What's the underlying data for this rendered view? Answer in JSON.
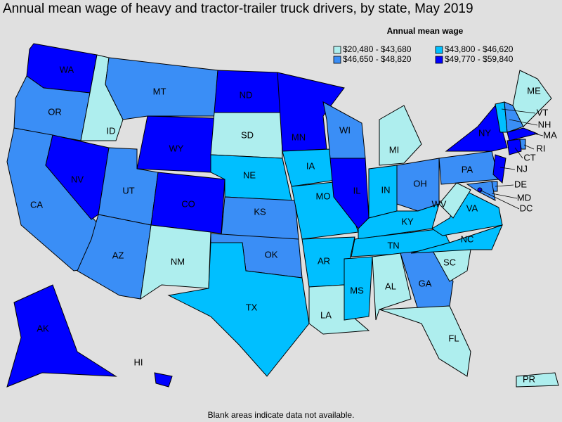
{
  "title": "Annual mean wage of heavy and tractor-trailer truck drivers, by state, May 2019",
  "legend": {
    "title": "Annual mean wage",
    "entries": [
      {
        "label": "$20,480 - $43,680",
        "color": "#aeeeee"
      },
      {
        "label": "$43,800 - $46,620",
        "color": "#00bfff"
      },
      {
        "label": "$46,650 - $48,820",
        "color": "#3a8ef6"
      },
      {
        "label": "$49,770 - $59,840",
        "color": "#0000ff"
      }
    ]
  },
  "states": [
    {
      "label": "WA",
      "class": 3
    },
    {
      "label": "OR",
      "class": 2
    },
    {
      "label": "CA",
      "class": 2
    },
    {
      "label": "NV",
      "class": 3
    },
    {
      "label": "ID",
      "class": 0
    },
    {
      "label": "MT",
      "class": 2
    },
    {
      "label": "WY",
      "class": 3
    },
    {
      "label": "UT",
      "class": 2
    },
    {
      "label": "CO",
      "class": 3
    },
    {
      "label": "AZ",
      "class": 2
    },
    {
      "label": "NM",
      "class": 0
    },
    {
      "label": "ND",
      "class": 3
    },
    {
      "label": "SD",
      "class": 0
    },
    {
      "label": "NE",
      "class": 1
    },
    {
      "label": "KS",
      "class": 2
    },
    {
      "label": "OK",
      "class": 2
    },
    {
      "label": "TX",
      "class": 1
    },
    {
      "label": "MN",
      "class": 3
    },
    {
      "label": "IA",
      "class": 1
    },
    {
      "label": "MO",
      "class": 1
    },
    {
      "label": "AR",
      "class": 1
    },
    {
      "label": "LA",
      "class": 0
    },
    {
      "label": "WI",
      "class": 2
    },
    {
      "label": "IL",
      "class": 3
    },
    {
      "label": "MI",
      "class": 0
    },
    {
      "label": "IN",
      "class": 1
    },
    {
      "label": "OH",
      "class": 2
    },
    {
      "label": "KY",
      "class": 1
    },
    {
      "label": "TN",
      "class": 1
    },
    {
      "label": "MS",
      "class": 1
    },
    {
      "label": "AL",
      "class": 0
    },
    {
      "label": "GA",
      "class": 2
    },
    {
      "label": "FL",
      "class": 0
    },
    {
      "label": "SC",
      "class": 0
    },
    {
      "label": "NC",
      "class": 1
    },
    {
      "label": "VA",
      "class": 1
    },
    {
      "label": "WV",
      "class": 0
    },
    {
      "label": "PA",
      "class": 2
    },
    {
      "label": "NY",
      "class": 3
    },
    {
      "label": "VT",
      "class": 1
    },
    {
      "label": "NH",
      "class": 2
    },
    {
      "label": "ME",
      "class": 0
    },
    {
      "label": "MA",
      "class": 3
    },
    {
      "label": "CT",
      "class": 3
    },
    {
      "label": "RI",
      "class": 2
    },
    {
      "label": "NJ",
      "class": 3
    },
    {
      "label": "DE",
      "class": 2
    },
    {
      "label": "MD",
      "class": 2
    },
    {
      "label": "DC",
      "class": 3
    },
    {
      "label": "AK",
      "class": 3
    },
    {
      "label": "HI",
      "class": 3
    },
    {
      "label": "PR",
      "class": 0
    }
  ],
  "footnote": "Blank areas indicate data not available."
}
